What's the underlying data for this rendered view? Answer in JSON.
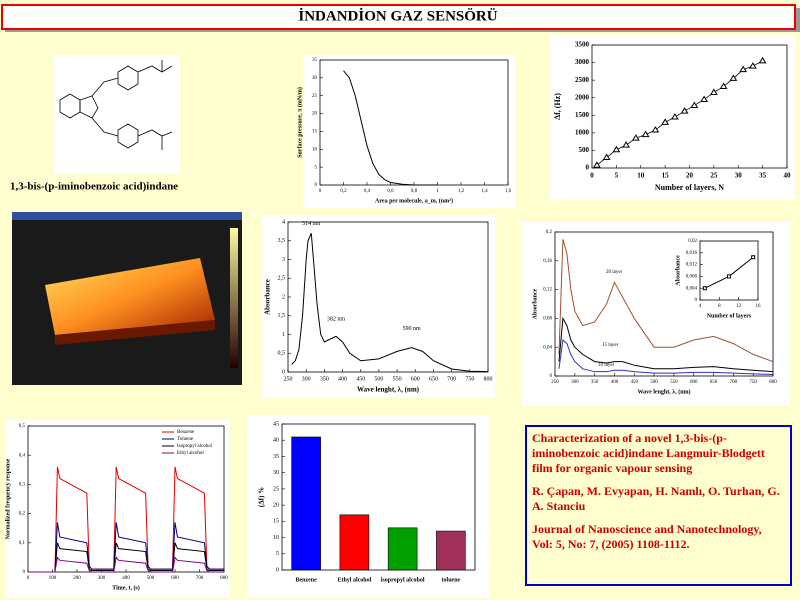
{
  "title": "İNDANDİON GAZ SENSÖRÜ",
  "molecule_caption": "1,3-bis-(p-iminobenzoic acid)indane",
  "reference": {
    "heading": "Characterization of a novel 1,3-bis-(p-iminobenzoic acid)indane Langmuir-Blodgett film for organic vapour sensing",
    "authors": "R. Çapan, M. Evyapan, H. Namlı, O. Turhan, G. A. Stanciu",
    "journal": "Journal of Nanoscience and Nanotechnology, Vol: 5, No: 7, (2005) 1108-1112."
  },
  "chart_data": [
    {
      "type": "line",
      "xlabel": "Area per molecule, a_m, (nm²)",
      "ylabel": "Surface pressure, π (mN/m)",
      "color": "#000000",
      "x": [
        0.2,
        0.25,
        0.3,
        0.35,
        0.4,
        0.45,
        0.5,
        0.55,
        0.6,
        0.7,
        0.8,
        1.0
      ],
      "values": [
        32,
        30,
        25,
        18,
        11,
        6,
        3,
        1.5,
        0.7,
        0.2,
        0,
        0
      ],
      "xlim": [
        0,
        1.6
      ],
      "xticks": [
        0,
        {
          "value": 0.2,
          "label": "0,2"
        },
        {
          "value": 0.4,
          "label": "0,4"
        },
        {
          "value": 0.6,
          "label": "0,6"
        },
        {
          "value": 0.8,
          "label": "0,8"
        },
        1,
        {
          "value": 1.2,
          "label": "1,2"
        },
        {
          "value": 1.4,
          "label": "1,4"
        },
        {
          "value": 1.6,
          "label": "1,6"
        }
      ],
      "ylim": [
        0,
        35
      ],
      "yticks": [
        0,
        5,
        10,
        15,
        20,
        25,
        30,
        35
      ]
    },
    {
      "type": "scatter",
      "xlabel": "Number of layers, N",
      "ylabel": "Δf, (Hz)",
      "color": "#000000",
      "x": [
        1,
        3,
        5,
        7,
        9,
        11,
        13,
        15,
        17,
        19,
        21,
        23,
        25,
        27,
        29,
        31,
        33,
        35
      ],
      "values": [
        80,
        300,
        520,
        650,
        850,
        950,
        1080,
        1300,
        1450,
        1620,
        1780,
        1950,
        2150,
        2320,
        2550,
        2800,
        2900,
        3050
      ],
      "xlim": [
        0,
        40
      ],
      "xticks": [
        0,
        5,
        10,
        15,
        20,
        25,
        30,
        35,
        40
      ],
      "ylim": [
        0,
        3500
      ],
      "yticks": [
        0,
        500,
        1000,
        1500,
        2000,
        2500,
        3000,
        3500
      ]
    },
    {
      "type": "line",
      "xlabel": "Wave lenght, λ, (nm)",
      "ylabel": "Absorbance",
      "color": "#000000",
      "annotations": [
        "314 nm",
        "382 nm",
        "590 nm"
      ],
      "x": [
        260,
        270,
        280,
        290,
        300,
        305,
        314,
        320,
        330,
        340,
        350,
        360,
        382,
        400,
        420,
        450,
        500,
        550,
        590,
        620,
        650,
        700,
        750,
        800
      ],
      "values": [
        0.2,
        0.3,
        0.6,
        1.5,
        3.0,
        3.5,
        3.7,
        3.0,
        1.8,
        1.0,
        0.8,
        0.85,
        0.95,
        0.8,
        0.5,
        0.3,
        0.35,
        0.55,
        0.65,
        0.55,
        0.3,
        0.08,
        0.02,
        0.01
      ],
      "xlim": [
        250,
        800
      ],
      "xticks": [
        250,
        300,
        350,
        400,
        450,
        500,
        550,
        600,
        650,
        700,
        750,
        800
      ],
      "ylim": [
        0,
        4
      ],
      "yticks": [
        0,
        {
          "value": 0.5,
          "label": "0,5"
        },
        1,
        {
          "value": 1.5,
          "label": "1,5"
        },
        2,
        {
          "value": 2.5,
          "label": "2,5"
        },
        3,
        {
          "value": 3.5,
          "label": "3,5"
        },
        4
      ]
    },
    {
      "type": "line",
      "xlabel": "Wave lenght, λ, (nm)",
      "ylabel": "Absorbance",
      "x": [
        260,
        270,
        280,
        290,
        300,
        320,
        350,
        380,
        400,
        420,
        450,
        500,
        550,
        600,
        650,
        700,
        750,
        800
      ],
      "series": [
        {
          "name": "20 layer",
          "color": "#a0522d",
          "values": [
            0.03,
            0.19,
            0.17,
            0.12,
            0.09,
            0.07,
            0.075,
            0.1,
            0.13,
            0.11,
            0.08,
            0.04,
            0.04,
            0.05,
            0.055,
            0.045,
            0.03,
            0.02
          ]
        },
        {
          "name": "15 layer",
          "color": "#000000",
          "values": [
            0.02,
            0.08,
            0.07,
            0.05,
            0.04,
            0.03,
            0.02,
            0.018,
            0.02,
            0.02,
            0.015,
            0.01,
            0.01,
            0.012,
            0.013,
            0.01,
            0.008,
            0.006
          ]
        },
        {
          "name": "10 layer",
          "color": "#3030c0",
          "values": [
            0.01,
            0.05,
            0.045,
            0.03,
            0.02,
            0.01,
            0.006,
            0.006,
            0.008,
            0.008,
            0.006,
            0.004,
            0.004,
            0.005,
            0.005,
            0.004,
            0.003,
            0.002
          ]
        }
      ],
      "xlim": [
        250,
        800
      ],
      "xticks": [
        250,
        300,
        350,
        400,
        450,
        500,
        550,
        600,
        650,
        700,
        750,
        800
      ],
      "ylim": [
        0,
        0.2
      ],
      "yticks": [
        0,
        {
          "value": 0.04,
          "label": "0,04"
        },
        {
          "value": 0.08,
          "label": "0,08"
        },
        {
          "value": 0.12,
          "label": "0,12"
        },
        {
          "value": 0.16,
          "label": "0,16"
        },
        {
          "value": 0.2,
          "label": "0,2"
        }
      ]
    },
    {
      "type": "line",
      "xlabel": "Time, t, (s)",
      "ylabel": "Normalized frequency response",
      "legend": "top-right",
      "x": [
        0,
        110,
        120,
        130,
        240,
        250,
        260,
        350,
        360,
        370,
        480,
        490,
        500,
        590,
        600,
        610,
        720,
        730,
        740,
        800
      ],
      "series": [
        {
          "name": "Benzene",
          "color": "#e00000",
          "values": [
            0,
            0,
            0.36,
            0.32,
            0.27,
            0.02,
            0.01,
            0.01,
            0.36,
            0.32,
            0.27,
            0.02,
            0.01,
            0.01,
            0.36,
            0.32,
            0.27,
            0.02,
            0.01,
            0.01
          ]
        },
        {
          "name": "Toluene",
          "color": "#000080",
          "values": [
            0,
            0,
            0.17,
            0.12,
            0.1,
            0.02,
            0.01,
            0.01,
            0.17,
            0.12,
            0.1,
            0.02,
            0.01,
            0.01,
            0.17,
            0.12,
            0.1,
            0.02,
            0.01,
            0.01
          ]
        },
        {
          "name": "Isopropyl alcohol",
          "color": "#000000",
          "values": [
            0,
            0,
            0.1,
            0.08,
            0.07,
            0.01,
            0.005,
            0.005,
            0.1,
            0.08,
            0.07,
            0.01,
            0.005,
            0.005,
            0.1,
            0.08,
            0.07,
            0.01,
            0.005,
            0.005
          ]
        },
        {
          "name": "Ethyl alcohol",
          "color": "#800080",
          "values": [
            0,
            0,
            0.05,
            0.04,
            0.03,
            0.005,
            0,
            0,
            0.05,
            0.04,
            0.03,
            0.005,
            0,
            0,
            0.05,
            0.04,
            0.03,
            0.005,
            0,
            0
          ]
        }
      ],
      "xlim": [
        0,
        800
      ],
      "xticks": [
        0,
        100,
        200,
        300,
        400,
        500,
        600,
        700,
        800
      ],
      "ylim": [
        0,
        0.5
      ],
      "yticks": [
        0,
        {
          "value": 0.1,
          "label": "0,1"
        },
        {
          "value": 0.2,
          "label": "0,2"
        },
        {
          "value": 0.3,
          "label": "0,3"
        },
        {
          "value": 0.4,
          "label": "0,4"
        },
        {
          "value": 0.5,
          "label": "0,5"
        }
      ]
    },
    {
      "type": "bar",
      "ylabel": "(Δf) %",
      "categories": [
        "Benzene",
        "Ethyl alcohol",
        "isopropyl alcohol",
        "toluene"
      ],
      "values": [
        41,
        17,
        13,
        12
      ],
      "colors": [
        "#0000ff",
        "#ff0000",
        "#00a000",
        "#a0305a"
      ],
      "ylim": [
        0,
        45
      ],
      "yticks": [
        0,
        5,
        10,
        15,
        20,
        25,
        30,
        35,
        40,
        45
      ]
    },
    {
      "type": "line",
      "markers": true,
      "xlabel": "Number of layers",
      "ylabel": "Absorbance",
      "color": "#000000",
      "x": [
        5,
        10,
        15
      ],
      "values": [
        0.004,
        0.008,
        0.0145
      ],
      "xlim": [
        4,
        16
      ],
      "xticks": [
        4,
        8,
        12,
        16
      ],
      "ylim": [
        0,
        0.02
      ],
      "yticks": [
        0,
        {
          "value": 0.004,
          "label": "0,004"
        },
        {
          "value": 0.008,
          "label": "0,008"
        },
        {
          "value": 0.012,
          "label": "0,012"
        },
        {
          "value": 0.016,
          "label": "0,016"
        },
        {
          "value": 0.02,
          "label": "0,02"
        }
      ]
    }
  ]
}
